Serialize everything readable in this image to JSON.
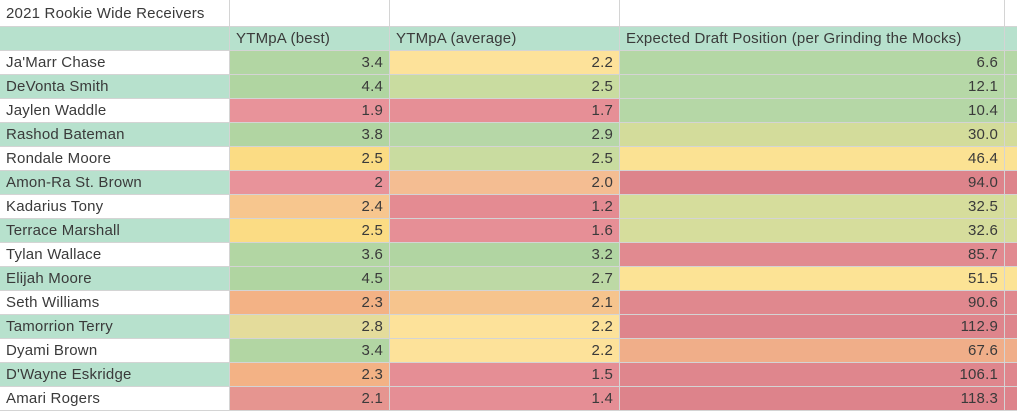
{
  "title": "2021 Rookie Wide Receivers",
  "headers": {
    "player": "",
    "best": "YTMpA (best)",
    "avg": "YTMpA (average)",
    "edp": "Expected Draft Position (per Grinding the Mocks)"
  },
  "colors": {
    "band_teal": "#b7e1cd",
    "white": "#ffffff",
    "gridline": "#d4d4d4",
    "text": "#3a3a3a",
    "scale_green": "#b2d6a3",
    "scale_yellow": "#fde29a",
    "scale_red": "#e68f96"
  },
  "rows": [
    {
      "name": "Ja'Marr Chase",
      "best": "3.4",
      "avg": "2.2",
      "edp": "6.6",
      "bg": {
        "name": "#ffffff",
        "best": "#b2d6a3",
        "avg": "#fde29a",
        "edp": "#b4d7a5"
      }
    },
    {
      "name": "DeVonta Smith",
      "best": "4.4",
      "avg": "2.5",
      "edp": "12.1",
      "bg": {
        "name": "#b7e1cd",
        "best": "#b0d5a1",
        "avg": "#c9dca0",
        "edp": "#b6d8a7"
      }
    },
    {
      "name": "Jaylen Waddle",
      "best": "1.9",
      "avg": "1.7",
      "edp": "10.4",
      "bg": {
        "name": "#ffffff",
        "best": "#e8939a",
        "avg": "#e68f96",
        "edp": "#b5d7a6"
      }
    },
    {
      "name": "Rashod Bateman",
      "best": "3.8",
      "avg": "2.9",
      "edp": "30.0",
      "bg": {
        "name": "#b7e1cd",
        "best": "#b1d5a2",
        "avg": "#b6d7a7",
        "edp": "#d3dc9b"
      }
    },
    {
      "name": "Rondale Moore",
      "best": "2.5",
      "avg": "2.5",
      "edp": "46.4",
      "bg": {
        "name": "#ffffff",
        "best": "#fbdc84",
        "avg": "#c9dca0",
        "edp": "#fbe293"
      }
    },
    {
      "name": "Amon-Ra St. Brown",
      "best": "2",
      "avg": "2.0",
      "edp": "94.0",
      "bg": {
        "name": "#b7e1cd",
        "best": "#e8939a",
        "avg": "#f4bd92",
        "edp": "#dd848b"
      }
    },
    {
      "name": "Kadarius Tony",
      "best": "2.4",
      "avg": "1.2",
      "edp": "32.5",
      "bg": {
        "name": "#ffffff",
        "best": "#f7c68e",
        "avg": "#e48b92",
        "edp": "#d6dd9c"
      }
    },
    {
      "name": "Terrace Marshall",
      "best": "2.5",
      "avg": "1.6",
      "edp": "32.6",
      "bg": {
        "name": "#b7e1cd",
        "best": "#fbdc84",
        "avg": "#e68f96",
        "edp": "#d6dd9c"
      }
    },
    {
      "name": "Tylan Wallace",
      "best": "3.6",
      "avg": "3.2",
      "edp": "85.7",
      "bg": {
        "name": "#ffffff",
        "best": "#b2d6a3",
        "avg": "#b1d5a2",
        "edp": "#e18a90"
      }
    },
    {
      "name": "Elijah Moore",
      "best": "4.5",
      "avg": "2.7",
      "edp": "51.5",
      "bg": {
        "name": "#b7e1cd",
        "best": "#b0d5a1",
        "avg": "#bdd9a5",
        "edp": "#fce395"
      }
    },
    {
      "name": "Seth Williams",
      "best": "2.3",
      "avg": "2.1",
      "edp": "90.6",
      "bg": {
        "name": "#ffffff",
        "best": "#f3b285",
        "avg": "#f6c48d",
        "edp": "#e0888e"
      }
    },
    {
      "name": "Tamorrion Terry",
      "best": "2.8",
      "avg": "2.2",
      "edp": "112.9",
      "bg": {
        "name": "#b7e1cd",
        "best": "#e4dc9b",
        "avg": "#fde29a",
        "edp": "#de858c"
      }
    },
    {
      "name": "Dyami Brown",
      "best": "3.4",
      "avg": "2.2",
      "edp": "67.6",
      "bg": {
        "name": "#ffffff",
        "best": "#b2d6a3",
        "avg": "#fde29a",
        "edp": "#f0ae89"
      }
    },
    {
      "name": "D'Wayne  Eskridge",
      "best": "2.3",
      "avg": "1.5",
      "edp": "106.1",
      "bg": {
        "name": "#b7e1cd",
        "best": "#f3b285",
        "avg": "#e58e95",
        "edp": "#df868d"
      }
    },
    {
      "name": "Amari Rogers",
      "best": "2.1",
      "avg": "1.4",
      "edp": "118.3",
      "bg": {
        "name": "#ffffff",
        "best": "#e69590",
        "avg": "#e58e95",
        "edp": "#dd838b"
      }
    }
  ]
}
